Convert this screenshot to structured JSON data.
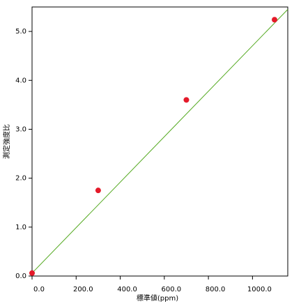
{
  "chart_data": {
    "type": "scatter",
    "x_label": "標準値(ppm)",
    "y_label": "測定強度比",
    "x": [
      0,
      300,
      700,
      1100
    ],
    "values": [
      0.06,
      1.75,
      3.6,
      5.24
    ],
    "color": "#e41a2a",
    "fit": {
      "x": [
        0,
        1160
      ],
      "y": [
        0.06,
        5.45
      ],
      "color": "#55aa22"
    },
    "xlim": [
      0,
      1160
    ],
    "ylim": [
      0,
      5.5
    ],
    "xticks": [
      {
        "value": 0,
        "label": "0.0"
      },
      {
        "value": 200,
        "label": "200.0"
      },
      {
        "value": 400,
        "label": "400.0"
      },
      {
        "value": 600,
        "label": "600.0"
      },
      {
        "value": 800,
        "label": "800.0"
      },
      {
        "value": 1000,
        "label": "1000.0"
      }
    ],
    "yticks": [
      {
        "value": 0,
        "label": "0.0"
      },
      {
        "value": 1,
        "label": "1.0"
      },
      {
        "value": 2,
        "label": "2.0"
      },
      {
        "value": 3,
        "label": "3.0"
      },
      {
        "value": 4,
        "label": "4.0"
      },
      {
        "value": 5,
        "label": "5.0"
      }
    ]
  }
}
